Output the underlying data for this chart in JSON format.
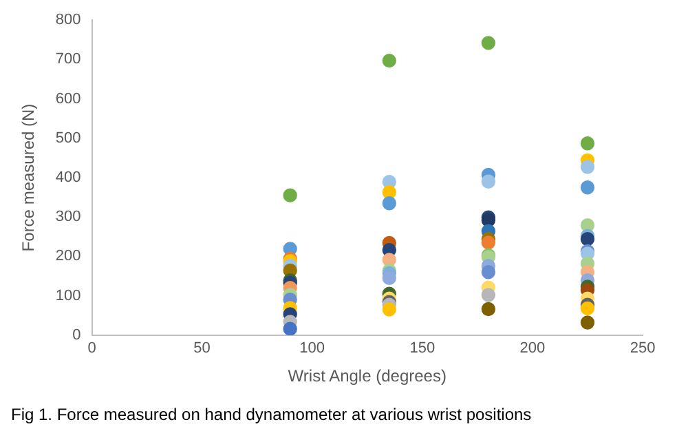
{
  "chart_data": {
    "type": "scatter",
    "xlabel": "Wrist Angle (degrees)",
    "ylabel": "Force measured (N)",
    "annotations": [
      "Fig 1. Force measured on hand dynamometer at various wrist positions"
    ],
    "x": [
      90,
      90,
      90,
      90,
      90,
      90,
      90,
      90,
      90,
      90,
      90,
      90,
      90,
      90,
      90,
      135,
      135,
      135,
      135,
      135,
      135,
      135,
      135,
      135,
      135,
      135,
      135,
      135,
      135,
      135,
      180,
      180,
      180,
      180,
      180,
      180,
      180,
      180,
      180,
      180,
      180,
      180,
      180,
      180,
      180,
      225,
      225,
      225,
      225,
      225,
      225,
      225,
      225,
      225,
      225,
      225,
      225,
      225,
      225,
      225,
      225,
      225,
      225
    ],
    "values": [
      355,
      219,
      194,
      188,
      176,
      164,
      139,
      133,
      120,
      102,
      90,
      69,
      53,
      34,
      16,
      697,
      389,
      363,
      335,
      234,
      216,
      191,
      164,
      157,
      145,
      105,
      93,
      84,
      77,
      65,
      742,
      407,
      390,
      299,
      292,
      264,
      244,
      235,
      203,
      198,
      176,
      160,
      121,
      102,
      66,
      487,
      444,
      427,
      375,
      279,
      252,
      244,
      213,
      207,
      182,
      160,
      139,
      123,
      114,
      93,
      77,
      68,
      32
    ],
    "colors": [
      "#70ad47",
      "#5b9bd5",
      "#ed7d31",
      "#ffc000",
      "#9dc3e6",
      "#997300",
      "#43682b",
      "#264478",
      "#f1975a",
      "#a9d18e",
      "#698ed0",
      "#ffc000",
      "#264478",
      "#b7b7b7",
      "#4472c4",
      "#70ad47",
      "#9dc3e6",
      "#ffc000",
      "#5b9bd5",
      "#c55a11",
      "#264478",
      "#f4b183",
      "#a9d18e",
      "#7cafdd",
      "#8faadc",
      "#43682b",
      "#ffd966",
      "#636363",
      "#b7b7b7",
      "#ffc000",
      "#70ad47",
      "#5b9bd5",
      "#9dc3e6",
      "#264478",
      "#1f3864",
      "#2e75b6",
      "#997300",
      "#ed7d31",
      "#8cc168",
      "#a9d18e",
      "#8faadc",
      "#698ed0",
      "#ffd966",
      "#b7b7b7",
      "#7f6000",
      "#70ad47",
      "#ffc000",
      "#9dc3e6",
      "#5b9bd5",
      "#a9d18e",
      "#7cafdd",
      "#264478",
      "#698ed0",
      "#9dc3e6",
      "#a9d18e",
      "#f4b183",
      "#8faadc",
      "#43682b",
      "#9e480e",
      "#ffd966",
      "#636363",
      "#ffc000",
      "#7f6000"
    ],
    "xlim": [
      0,
      250
    ],
    "xticks": [
      0,
      50,
      100,
      150,
      200,
      250
    ],
    "ylim": [
      0,
      800
    ],
    "yticks": [
      0,
      100,
      200,
      300,
      400,
      500,
      600,
      700,
      800
    ],
    "legend": false,
    "marker": "circle"
  }
}
